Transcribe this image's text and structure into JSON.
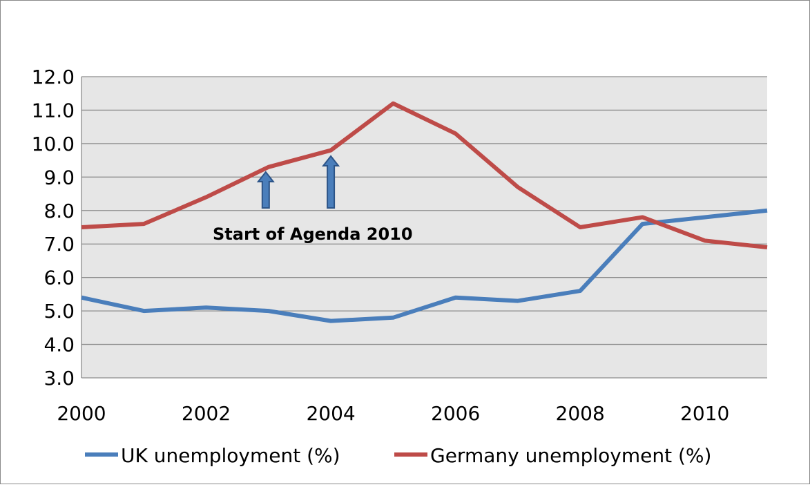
{
  "chart_data": {
    "type": "line",
    "title": "",
    "xlabel": "",
    "ylabel": "",
    "x": [
      2000,
      2001,
      2002,
      2003,
      2004,
      2005,
      2006,
      2007,
      2008,
      2009,
      2010,
      2011
    ],
    "xticks": [
      "2000",
      "2002",
      "2004",
      "2006",
      "2008",
      "2010"
    ],
    "xtick_values": [
      2000,
      2002,
      2004,
      2006,
      2008,
      2010
    ],
    "yticks": [
      "3.0",
      "4.0",
      "5.0",
      "6.0",
      "7.0",
      "8.0",
      "9.0",
      "10.0",
      "11.0",
      "12.0"
    ],
    "ylim": [
      3,
      12
    ],
    "xlim": [
      2000,
      2011
    ],
    "grid": true,
    "legend_position": "bottom",
    "series": [
      {
        "name": "UK unemployment (%)",
        "color": "#4a7ebb",
        "values": [
          5.4,
          5.0,
          5.1,
          5.0,
          4.7,
          4.8,
          5.4,
          5.3,
          5.6,
          7.6,
          7.8,
          8.0
        ]
      },
      {
        "name": "Germany unemployment (%)",
        "color": "#be4b48",
        "values": [
          7.5,
          7.6,
          8.4,
          9.3,
          9.8,
          11.2,
          10.3,
          8.7,
          7.5,
          7.8,
          7.1,
          6.9
        ]
      }
    ],
    "annotations": [
      {
        "text": "Start of Agenda 2010",
        "arrows_at_x": [
          2003,
          2004
        ]
      }
    ]
  }
}
